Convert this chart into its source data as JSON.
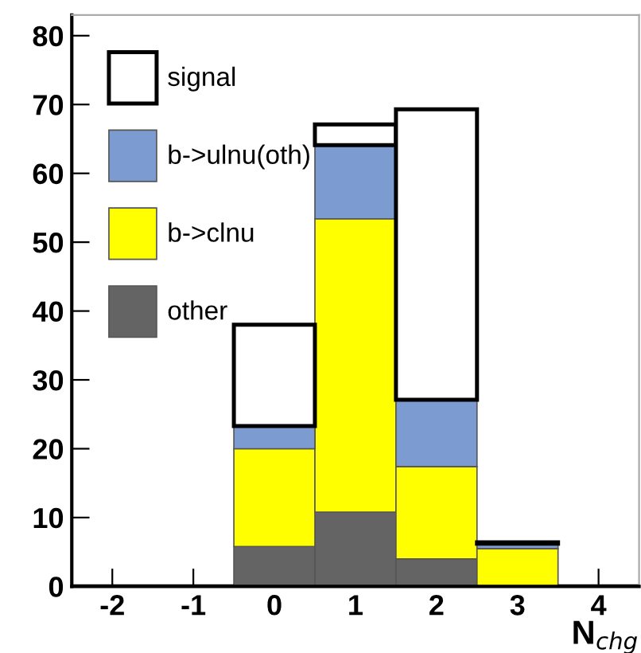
{
  "chart_data": {
    "type": "bar",
    "xlabel": "N$_{chg}$",
    "categories": [
      "-2",
      "-1",
      "0",
      "1",
      "2",
      "3",
      "4"
    ],
    "stacked": true,
    "series": [
      {
        "name": "other",
        "color": "#646464",
        "values": [
          0,
          0,
          5.8,
          10.8,
          4.0,
          0,
          0
        ]
      },
      {
        "name": "b->clnu",
        "color": "#ffff00",
        "values": [
          0,
          0,
          14.2,
          42.6,
          13.4,
          5.5,
          0
        ]
      },
      {
        "name": "b->ulnu(oth)",
        "color": "#7b9bd1",
        "values": [
          0,
          0,
          3.3,
          10.7,
          9.7,
          0.7,
          0
        ]
      },
      {
        "name": "signal",
        "color": "#ffffff",
        "values": [
          0,
          0,
          14.7,
          3.0,
          42.2,
          0.2,
          0
        ]
      }
    ],
    "ylim": [
      0,
      83
    ],
    "yticks": [
      0,
      10,
      20,
      30,
      40,
      50,
      60,
      70,
      80
    ],
    "grid": false,
    "legend": "top left"
  }
}
